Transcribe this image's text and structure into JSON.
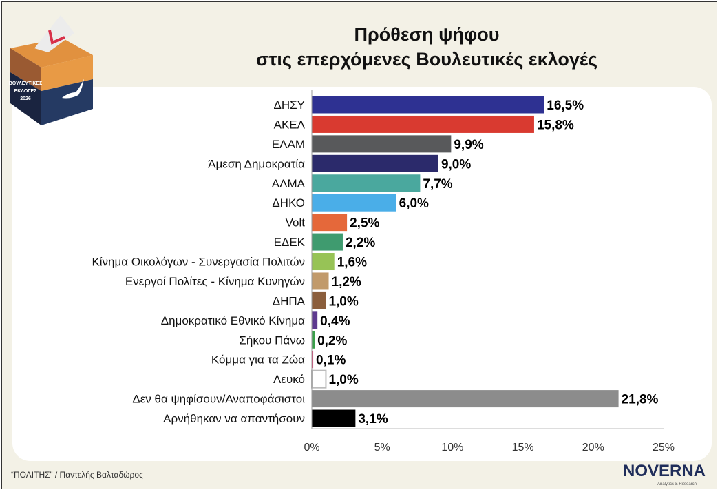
{
  "title_line1": "Πρόθεση ψήφου",
  "title_line2": "στις επερχόμενες Βουλευτικές εκλογές",
  "logo": {
    "text": [
      "ΒΟΥΛΕΥΤΙΚΕΣ",
      "ΕΚΛΟΓΕΣ",
      "2026"
    ]
  },
  "credit": "“ΠΟΛΙΤΗΣ” / Παντελής Βαλταδώρος",
  "brand": {
    "name": "NOVERNA",
    "tagline": "Analytics & Research"
  },
  "chart_data": {
    "type": "bar",
    "orientation": "horizontal",
    "title": "Πρόθεση ψήφου στις επερχόμενες Βουλευτικές εκλογές",
    "categories": [
      "ΔΗΣΥ",
      "ΑΚΕΛ",
      "ΕΛΑΜ",
      "Άμεση Δημοκρατία",
      "ΑΛΜΑ",
      "ΔΗΚΟ",
      "Volt",
      "ΕΔΕΚ",
      "Κίνημα Οικολόγων - Συνεργασία Πολιτών",
      "Ενεργοί Πολίτες - Κίνημα Κυνηγών",
      "ΔΗΠΑ",
      "Δημοκρατικό Εθνικό Κίνημα",
      "Σήκου Πάνω",
      "Κόμμα για τα Ζώα",
      "Λευκό",
      "Δεν θα ψηφίσουν/Αναποφάσιστοι",
      "Αρνήθηκαν να απαντήσουν"
    ],
    "values": [
      16.5,
      15.8,
      9.9,
      9.0,
      7.7,
      6.0,
      2.5,
      2.2,
      1.6,
      1.2,
      1.0,
      0.4,
      0.2,
      0.1,
      1.0,
      21.8,
      3.1
    ],
    "value_labels": [
      "16,5%",
      "15,8%",
      "9,9%",
      "9,0%",
      "7,7%",
      "6,0%",
      "2,5%",
      "2,2%",
      "1,6%",
      "1,2%",
      "1,0%",
      "0,4%",
      "0,2%",
      "0,1%",
      "1,0%",
      "21,8%",
      "3,1%"
    ],
    "colors": [
      "#2e3192",
      "#d93a30",
      "#58595b",
      "#2b2a6b",
      "#4aa89e",
      "#4aaee8",
      "#e5683a",
      "#3f9b6f",
      "#97c356",
      "#c19a6b",
      "#8b5e3c",
      "#5e3a8f",
      "#3aa04a",
      "#e0306a",
      "#ffffff",
      "#8c8c8c",
      "#000000"
    ],
    "xlim": [
      0,
      25
    ],
    "xticks": [
      0,
      5,
      10,
      15,
      20,
      25
    ],
    "xtick_labels": [
      "0%",
      "5%",
      "10%",
      "15%",
      "20%",
      "25%"
    ],
    "xlabel": "",
    "ylabel": "",
    "grid": false,
    "legend": "none"
  }
}
